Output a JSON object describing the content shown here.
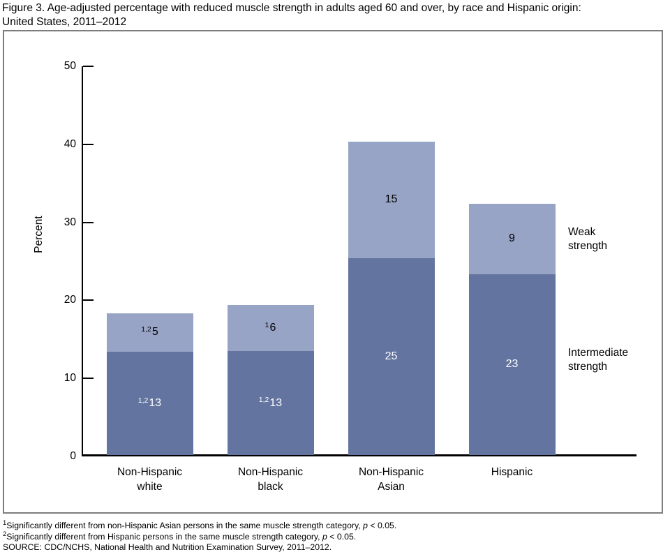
{
  "title": {
    "line1": "Figure 3. Age-adjusted percentage with reduced muscle strength in adults aged 60 and over, by race and Hispanic origin:",
    "line2": "United States, 2011–2012"
  },
  "chart_data": {
    "type": "bar",
    "stacked": true,
    "title": "Figure 3. Age-adjusted percentage with reduced muscle strength in adults aged 60 and over, by race and Hispanic origin: United States, 2011–2012",
    "xlabel": "",
    "ylabel": "Percent",
    "ylim": [
      0,
      50
    ],
    "yticks": [
      0,
      10,
      20,
      30,
      40,
      50
    ],
    "grid": false,
    "legend_position": "right-inside",
    "categories": [
      "Non-Hispanic white",
      "Non-Hispanic black",
      "Non-Hispanic Asian",
      "Hispanic"
    ],
    "category_lines": [
      [
        "Non-Hispanic",
        "white"
      ],
      [
        "Non-Hispanic",
        "black"
      ],
      [
        "Non-Hispanic",
        "Asian"
      ],
      [
        "Hispanic"
      ]
    ],
    "series": [
      {
        "name": "Intermediate strength",
        "color": "#62749f",
        "label_color": "#ffffff",
        "values": [
          13.2,
          13.3,
          25.2,
          23.2
        ],
        "labels": [
          "13",
          "13",
          "25",
          "23"
        ],
        "label_sups": [
          "1,2",
          "1,2",
          "",
          ""
        ]
      },
      {
        "name": "Weak strength",
        "color": "#98a4c6",
        "label_color": "#000000",
        "values": [
          5.0,
          5.9,
          15.0,
          9.0
        ],
        "labels": [
          "5",
          "6",
          "15",
          "9"
        ],
        "label_sups": [
          "1,2",
          "1",
          "",
          ""
        ]
      }
    ],
    "totals": [
      18.2,
      19.2,
      40.2,
      32.2
    ]
  },
  "annotations": {
    "weak": {
      "line1": "Weak",
      "line2": "strength"
    },
    "intermediate": {
      "line1": "Intermediate",
      "line2": "strength"
    }
  },
  "footnotes": [
    {
      "sup": "1",
      "pre": "Significantly different from non-Hispanic Asian persons in the same muscle strength category, ",
      "italic": "p",
      "post": " < 0.05."
    },
    {
      "sup": "2",
      "pre": "Significantly different from Hispanic persons in the same muscle strength category, ",
      "italic": "p",
      "post": " < 0.05."
    },
    {
      "sup": "",
      "pre": "SOURCE: CDC/NCHS, National Health and Nutrition Examination Survey, 2011–2012.",
      "italic": "",
      "post": ""
    }
  ]
}
